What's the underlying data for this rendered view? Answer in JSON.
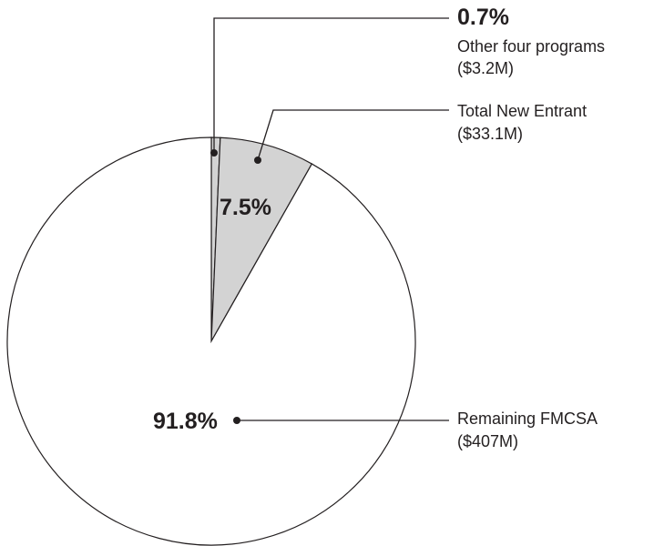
{
  "chart_data": {
    "type": "pie",
    "slices": [
      {
        "name": "Other four programs",
        "amount": "($3.2M)",
        "value": 0.7,
        "percent_label": "0.7%",
        "color": "#d3d3d3"
      },
      {
        "name": "Total New Entrant",
        "amount": "($33.1M)",
        "value": 7.5,
        "percent_label": "7.5%",
        "color": "#d3d3d3"
      },
      {
        "name": "Remaining FMCSA",
        "amount": "($407M)",
        "value": 91.8,
        "percent_label": "91.8%",
        "color": "#ffffff"
      }
    ],
    "start": "12 o'clock",
    "direction": "clockwise",
    "legend": "none",
    "outline_color": "#231f20"
  }
}
